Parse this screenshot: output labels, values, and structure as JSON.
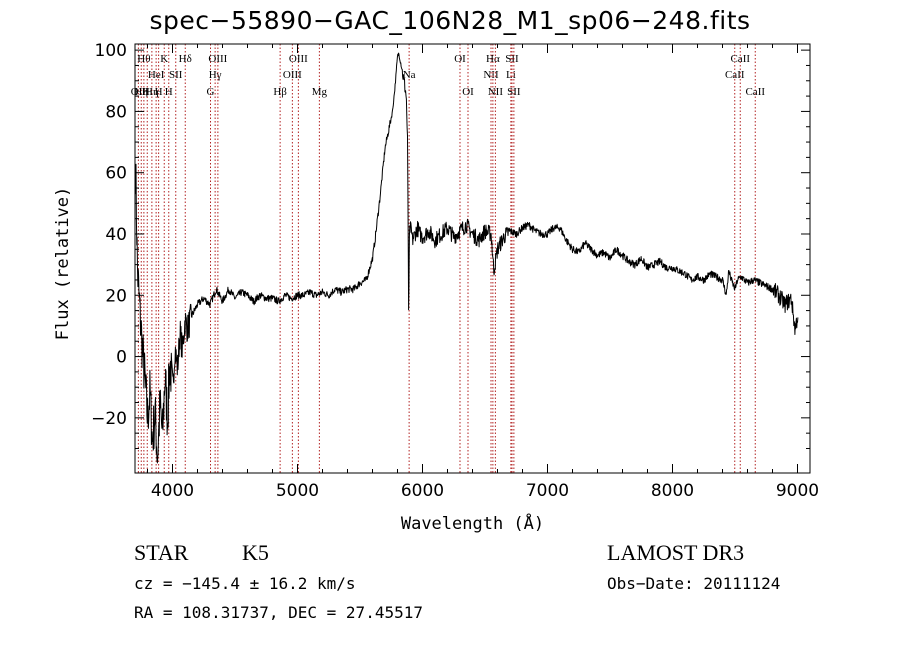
{
  "chart_data": {
    "type": "line",
    "title": "spec−55890−GAC_106N28_M1_sp06−248.fits",
    "xlabel": "Wavelength (Å)",
    "ylabel": "Flux (relative)",
    "xlim": [
      3700,
      9100
    ],
    "ylim": [
      -38,
      102
    ],
    "x_ticks": [
      {
        "value": 4000,
        "label": "4000"
      },
      {
        "value": 5000,
        "label": "5000"
      },
      {
        "value": 6000,
        "label": "6000"
      },
      {
        "value": 7000,
        "label": "7000"
      },
      {
        "value": 8000,
        "label": "8000"
      },
      {
        "value": 9000,
        "label": "9000"
      }
    ],
    "y_ticks": [
      {
        "value": -20,
        "label": "−20"
      },
      {
        "value": 0,
        "label": "0"
      },
      {
        "value": 20,
        "label": "20"
      },
      {
        "value": 40,
        "label": "40"
      },
      {
        "value": 60,
        "label": "60"
      },
      {
        "value": 80,
        "label": "80"
      },
      {
        "value": 100,
        "label": "100"
      }
    ],
    "series": [
      {
        "name": "spectrum",
        "x": [
          3705,
          3720,
          3740,
          3760,
          3780,
          3800,
          3820,
          3840,
          3860,
          3880,
          3900,
          3920,
          3940,
          3960,
          3980,
          4000,
          4020,
          4040,
          4060,
          4080,
          4100,
          4120,
          4150,
          4200,
          4250,
          4300,
          4350,
          4400,
          4450,
          4500,
          4550,
          4600,
          4650,
          4700,
          4750,
          4800,
          4850,
          4900,
          4950,
          5000,
          5050,
          5100,
          5150,
          5200,
          5250,
          5300,
          5350,
          5400,
          5450,
          5500,
          5550,
          5600,
          5620,
          5640,
          5660,
          5680,
          5700,
          5720,
          5740,
          5760,
          5780,
          5790,
          5800,
          5810,
          5820,
          5830,
          5840,
          5850,
          5860,
          5870,
          5880,
          5890,
          5895,
          5900,
          5910,
          5920,
          5940,
          5960,
          5980,
          6000,
          6050,
          6100,
          6150,
          6200,
          6250,
          6300,
          6350,
          6400,
          6450,
          6500,
          6550,
          6570,
          6600,
          6650,
          6700,
          6750,
          6800,
          6850,
          6900,
          6950,
          7000,
          7050,
          7100,
          7150,
          7200,
          7250,
          7300,
          7350,
          7400,
          7450,
          7500,
          7550,
          7600,
          7650,
          7700,
          7750,
          7800,
          7850,
          7900,
          7950,
          8000,
          8050,
          8100,
          8150,
          8200,
          8250,
          8300,
          8350,
          8400,
          8430,
          8450,
          8470,
          8500,
          8520,
          8550,
          8600,
          8650,
          8700,
          8750,
          8800,
          8850,
          8900,
          8950,
          8980,
          9000
        ],
        "values": [
          62,
          28,
          14,
          2,
          -8,
          -20,
          -12,
          -28,
          -18,
          -33,
          -16,
          -26,
          -6,
          -20,
          -1,
          -12,
          3,
          -4,
          8,
          2,
          12,
          9,
          13,
          17,
          19,
          17,
          22,
          18,
          22,
          19,
          21,
          20,
          18,
          20,
          19,
          19,
          18,
          20,
          19,
          20,
          20,
          21,
          20,
          21,
          20,
          22,
          21,
          22,
          22,
          24,
          25,
          32,
          38,
          45,
          52,
          60,
          68,
          72,
          76,
          80,
          88,
          93,
          98,
          99,
          97,
          95,
          93,
          90,
          88,
          85,
          70,
          10,
          38,
          42,
          41,
          38,
          40,
          42,
          40,
          39,
          41,
          38,
          40,
          42,
          39,
          41,
          43,
          40,
          38,
          41,
          40,
          28,
          35,
          39,
          41,
          40,
          42,
          43,
          41,
          40,
          40,
          42,
          42,
          38,
          35,
          34,
          37,
          35,
          33,
          34,
          32,
          35,
          33,
          31,
          30,
          32,
          29,
          30,
          31,
          29,
          29,
          28,
          27,
          25,
          26,
          25,
          27,
          26,
          25,
          20,
          28,
          25,
          22,
          25,
          26,
          24,
          25,
          24,
          23,
          22,
          20,
          17,
          19,
          9,
          13
        ]
      }
    ],
    "lines": [
      {
        "wave": 3727,
        "label": "OII",
        "row": 2
      },
      {
        "wave": 3750,
        "label": "Hη",
        "row": 2
      },
      {
        "wave": 3771,
        "label": "Hθ",
        "row": 0
      },
      {
        "wave": 3798,
        "label": "Hι",
        "row": 2
      },
      {
        "wave": 3835,
        "label": "Hη",
        "row": 2
      },
      {
        "wave": 3869,
        "label": "HeI",
        "row": 1
      },
      {
        "wave": 3889,
        "label": "H",
        "row": 2
      },
      {
        "wave": 3934,
        "label": "K",
        "row": 0
      },
      {
        "wave": 3970,
        "label": "H",
        "row": 2
      },
      {
        "wave": 4026,
        "label": "SII",
        "row": 1
      },
      {
        "wave": 4102,
        "label": "Hδ",
        "row": 0
      },
      {
        "wave": 4304,
        "label": "G",
        "row": 2
      },
      {
        "wave": 4341,
        "label": "Hγ",
        "row": 1
      },
      {
        "wave": 4363,
        "label": "OIII",
        "row": 0
      },
      {
        "wave": 4861,
        "label": "Hβ",
        "row": 2
      },
      {
        "wave": 4959,
        "label": "OIII",
        "row": 1
      },
      {
        "wave": 5007,
        "label": "OIII",
        "row": 0
      },
      {
        "wave": 5175,
        "label": "Mg",
        "row": 2
      },
      {
        "wave": 5893,
        "label": "Na",
        "row": 1
      },
      {
        "wave": 6300,
        "label": "OI",
        "row": 0
      },
      {
        "wave": 6364,
        "label": "OI",
        "row": 2
      },
      {
        "wave": 6548,
        "label": "NII",
        "row": 1
      },
      {
        "wave": 6563,
        "label": "Hα",
        "row": 0
      },
      {
        "wave": 6583,
        "label": "NII",
        "row": 2
      },
      {
        "wave": 6707,
        "label": "Li",
        "row": 1
      },
      {
        "wave": 6716,
        "label": "SII",
        "row": 0
      },
      {
        "wave": 6731,
        "label": "SII",
        "row": 2
      },
      {
        "wave": 8498,
        "label": "CaII",
        "row": 1
      },
      {
        "wave": 8542,
        "label": "CaII",
        "row": 0
      },
      {
        "wave": 8662,
        "label": "CaII",
        "row": 2
      }
    ]
  },
  "info": {
    "class": "STAR",
    "subclass": "K5",
    "survey": "LAMOST DR3",
    "cz": "cz = −145.4 ± 16.2 km/s",
    "obs_date": "Obs−Date: 20111124",
    "coords": "RA = 108.31737, DEC =  27.45517"
  },
  "colors": {
    "line_marker": "#b22222",
    "spectrum": "#000000"
  }
}
